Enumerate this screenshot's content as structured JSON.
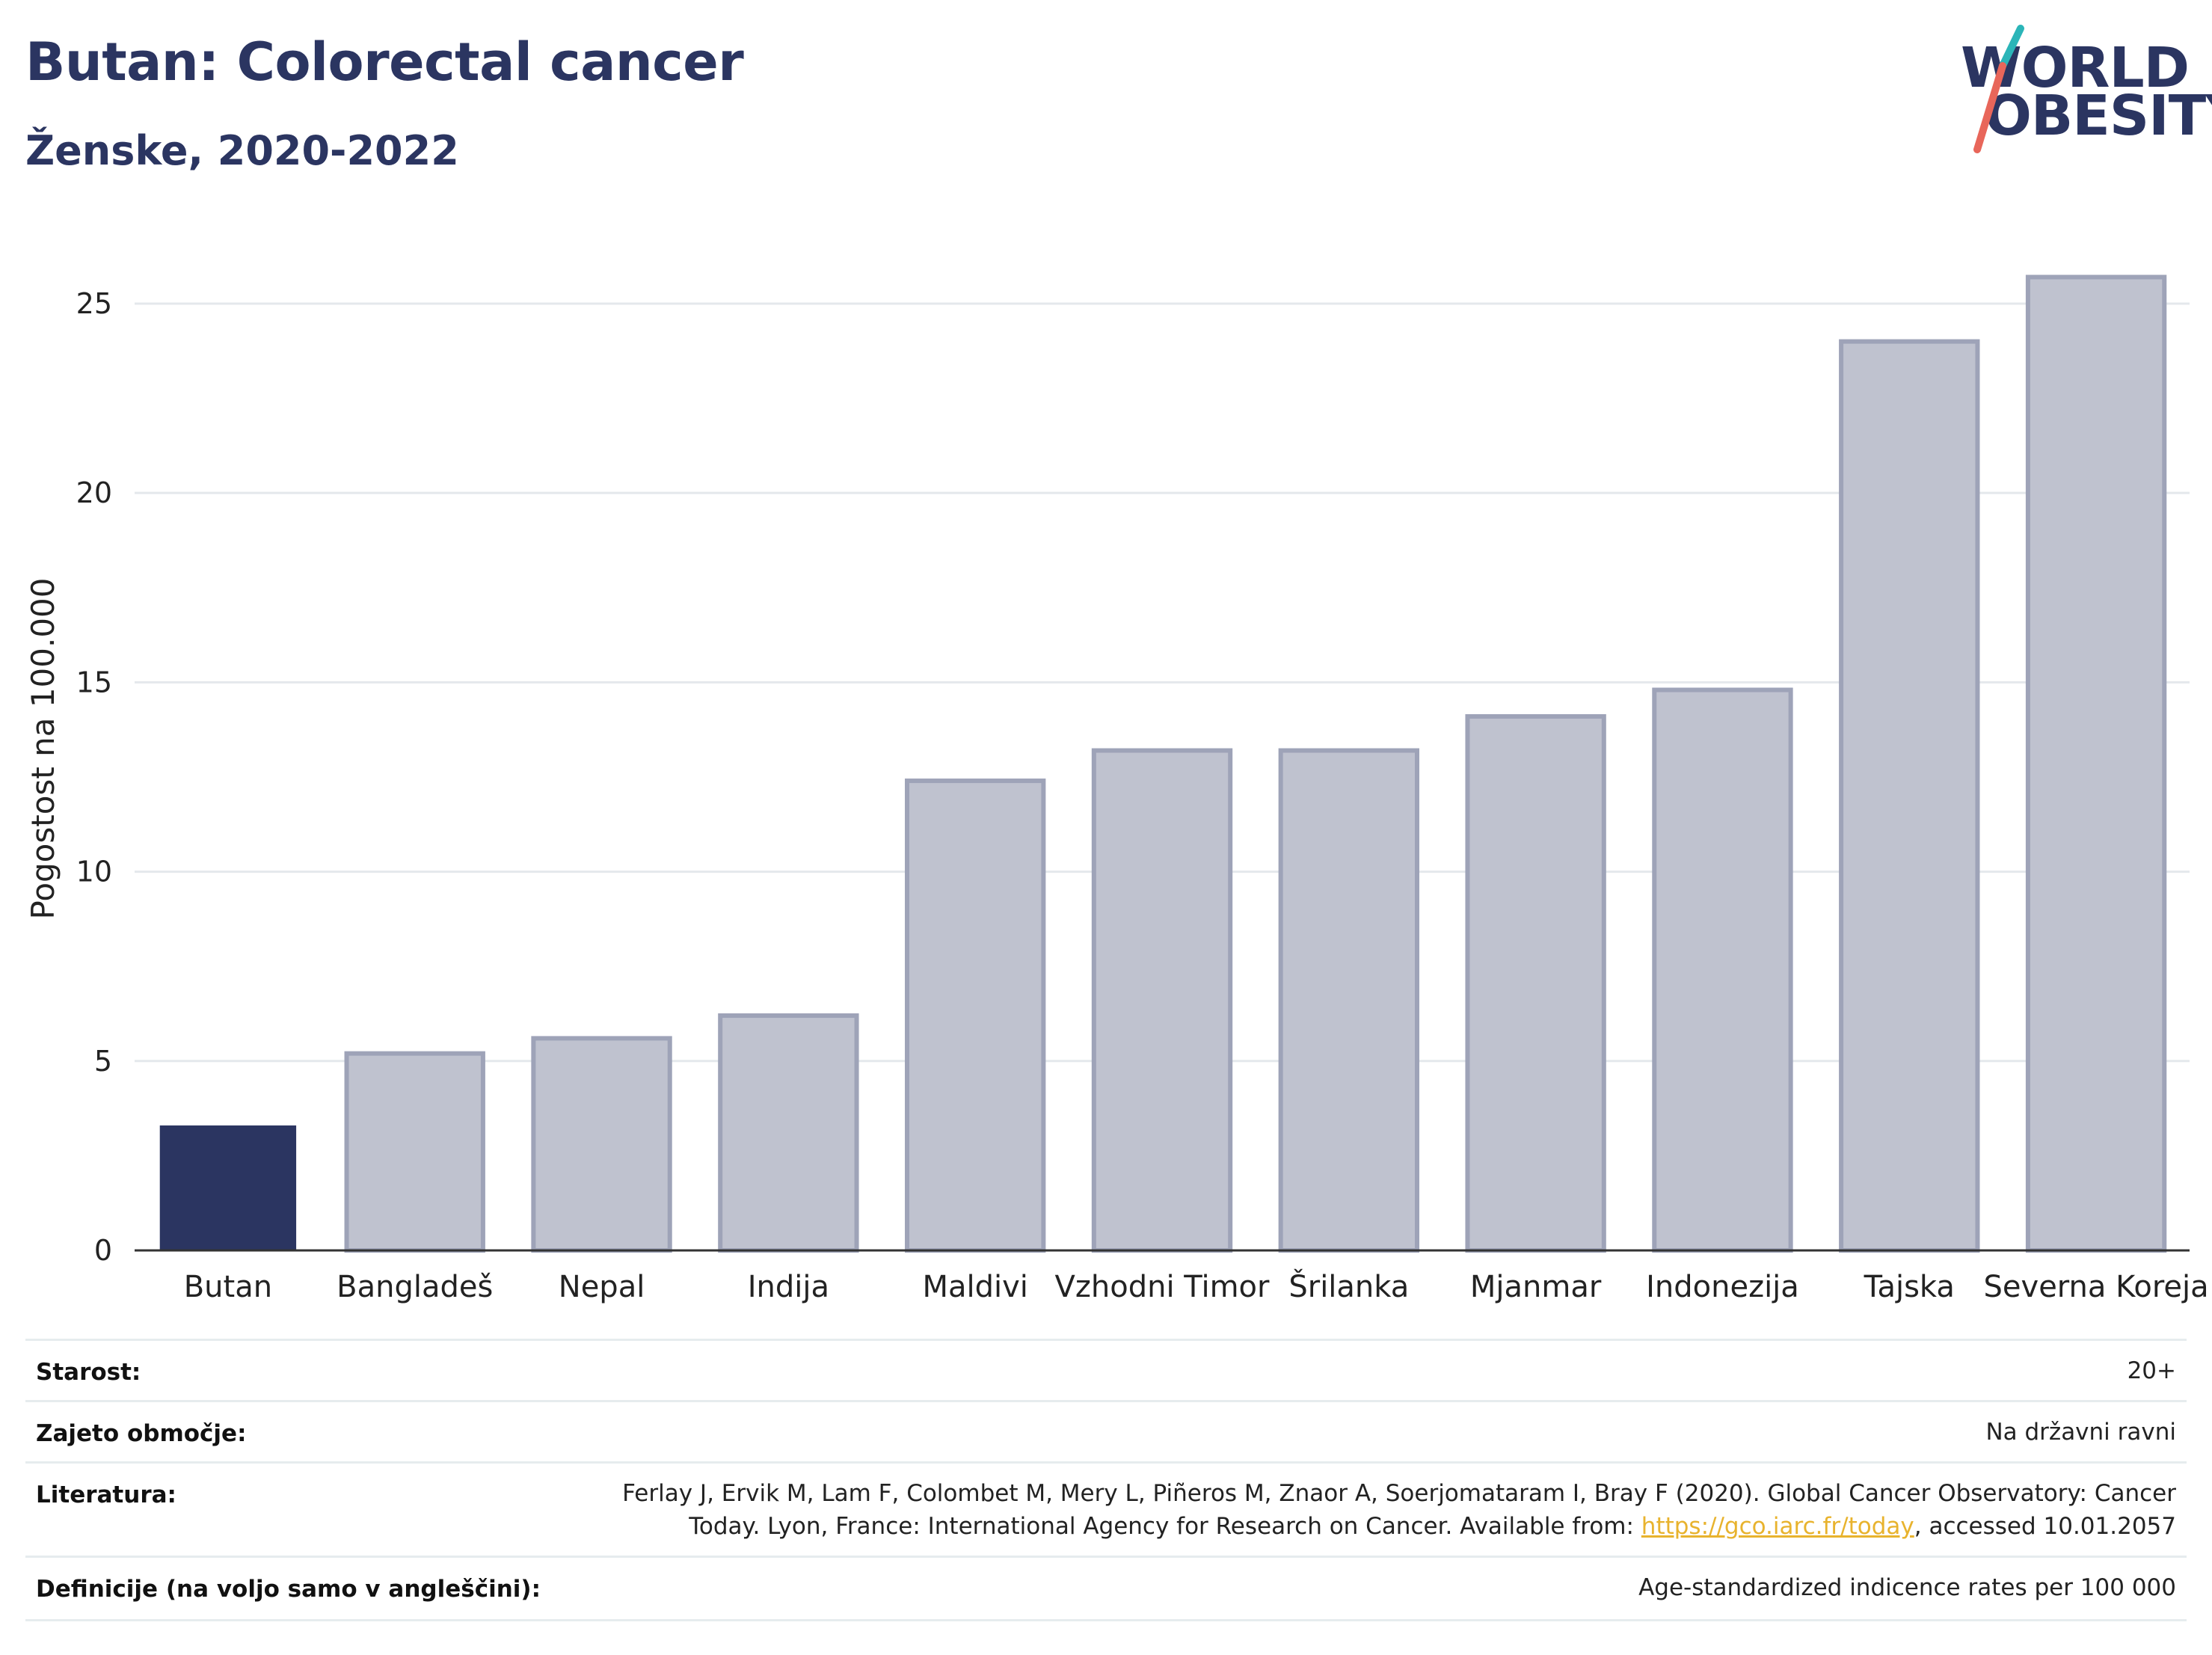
{
  "header": {
    "title": "Butan: Colorectal cancer",
    "subtitle": "Ženske, 2020-2022"
  },
  "logo": {
    "line1": "WORLD",
    "line2": "OBESITY",
    "accent_teal": "#2bb5b8",
    "accent_red": "#e8665a"
  },
  "chart_data": {
    "type": "bar",
    "ylabel": "Pogostost na 100.000",
    "ylim": [
      0,
      26.5
    ],
    "yticks": [
      0,
      5,
      10,
      15,
      20,
      25
    ],
    "grid": true,
    "categories": [
      "Butan",
      "Bangladeš",
      "Nepal",
      "Indija",
      "Maldivi",
      "Vzhodni Timor",
      "Šrilanka",
      "Mjanmar",
      "Indonezija",
      "Tajska",
      "Severna Koreja"
    ],
    "values": [
      3.3,
      5.2,
      5.6,
      6.2,
      12.4,
      13.2,
      13.2,
      14.1,
      14.8,
      24.0,
      25.7
    ],
    "highlight_index": 0,
    "highlight_color": "#2b3561",
    "bar_color": "#bfc2cf",
    "bar_edge_color": "#9ea3b8"
  },
  "info": {
    "rows": [
      {
        "label": "Starost:",
        "value": "20+"
      },
      {
        "label": "Zajeto območje:",
        "value": "Na državni ravni"
      },
      {
        "label": "Literatura:",
        "value_line1": "Ferlay J, Ervik M, Lam F, Colombet M, Mery L, Piñeros M, Znaor A, Soerjomataram I, Bray F (2020). Global Cancer Observatory: Cancer",
        "value_line2_pre": "Today. Lyon, France: International Agency for Research on Cancer. Available from: ",
        "link": "https://gco.iarc.fr/today",
        "value_line2_post": ", accessed 10.01.2057"
      },
      {
        "label": "Definicije (na voljo samo v angleščini):",
        "value": "Age-standardized indicence rates per 100 000"
      }
    ]
  }
}
